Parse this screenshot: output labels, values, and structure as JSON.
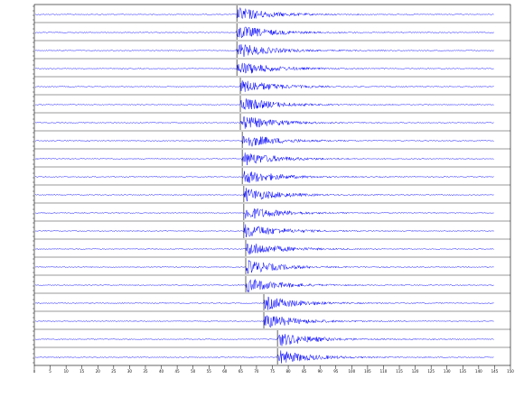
{
  "chart_data": {
    "type": "seismogram",
    "color": "#0000ff",
    "xlim": [
      0,
      150
    ],
    "xticks": [
      0,
      5,
      10,
      15,
      20,
      25,
      30,
      35,
      40,
      45,
      50,
      55,
      60,
      65,
      70,
      75,
      80,
      85,
      90,
      95,
      100,
      105,
      110,
      115,
      120,
      125,
      130,
      135,
      140,
      145,
      150
    ],
    "onsets": [
      63.8,
      63.8,
      63.8,
      63.8,
      64.9,
      64.9,
      64.9,
      65.5,
      65.5,
      65.5,
      66,
      66,
      66,
      66.6,
      66.6,
      66.6,
      72.3,
      72.3,
      76.6,
      76.6
    ]
  }
}
